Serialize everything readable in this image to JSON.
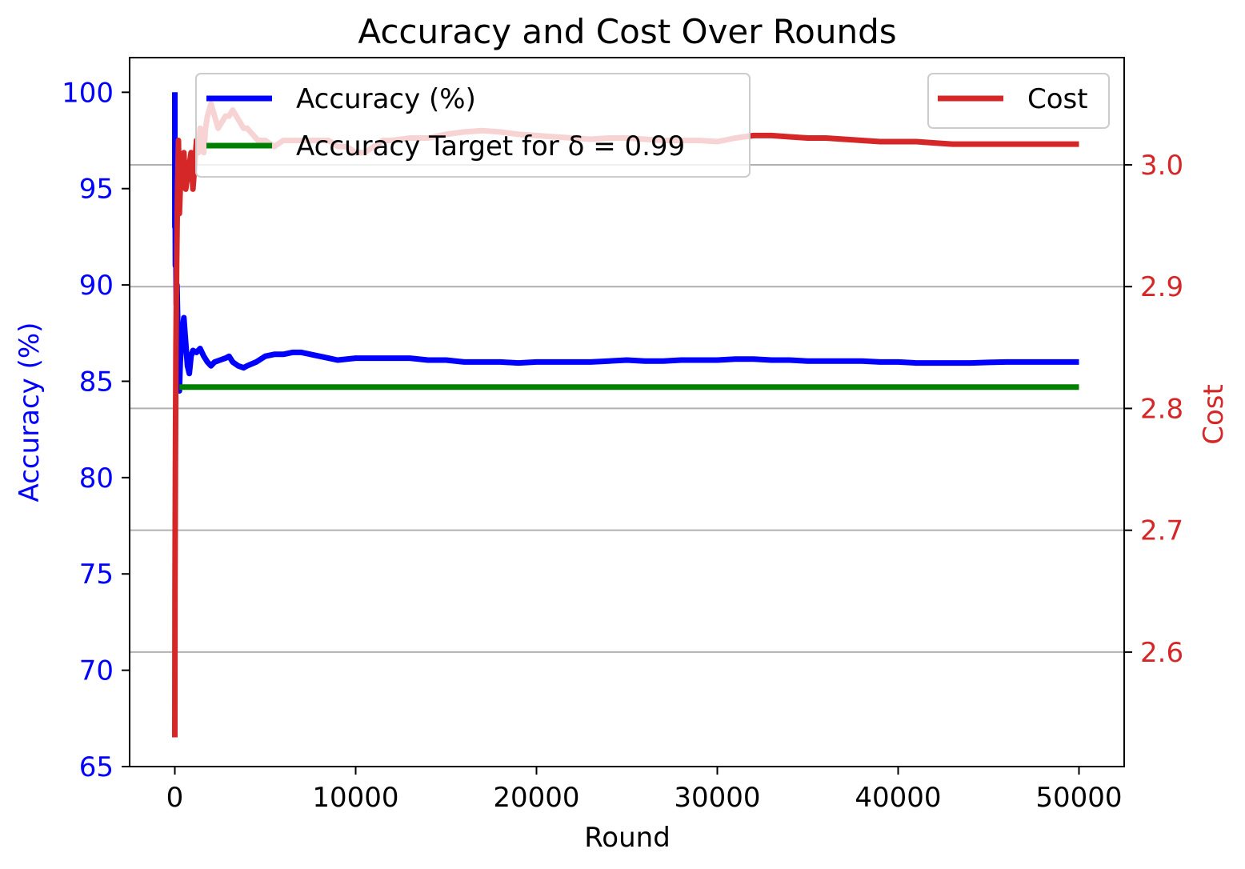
{
  "chart_data": {
    "type": "line",
    "title": "Accuracy and Cost Over Rounds",
    "xlabel": "Round",
    "ylabel_left": "Accuracy (%)",
    "ylabel_right": "Cost",
    "xlim": [
      -2500,
      52500
    ],
    "ylim_left": [
      65,
      101.8
    ],
    "ylim_right": [
      2.506,
      3.088
    ],
    "x_ticks": [
      0,
      10000,
      20000,
      30000,
      40000,
      50000
    ],
    "x_tick_labels": [
      "0",
      "10000",
      "20000",
      "30000",
      "40000",
      "50000"
    ],
    "y_left_ticks": [
      65,
      70,
      75,
      80,
      85,
      90,
      95,
      100
    ],
    "y_left_tick_labels": [
      "65",
      "70",
      "75",
      "80",
      "85",
      "90",
      "95",
      "100"
    ],
    "y_right_ticks": [
      2.6,
      2.7,
      2.8,
      2.9,
      3.0
    ],
    "y_right_tick_labels": [
      "2.6",
      "2.7",
      "2.8",
      "2.9",
      "3.0"
    ],
    "grid": "horizontal lines at right-axis ticks",
    "colors": {
      "accuracy": "#0000ff",
      "target": "#008000",
      "cost": "#d62728",
      "grid": "#b0b0b0",
      "axis": "#000000",
      "left_axis_text": "#0000ff",
      "right_axis_text": "#d62728"
    },
    "legends": [
      {
        "placement": "upper-left",
        "entries": [
          {
            "label": "Accuracy (%)",
            "series": "accuracy"
          },
          {
            "label": "Accuracy Target for δ = 0.99",
            "series": "target"
          }
        ]
      },
      {
        "placement": "upper-right",
        "entries": [
          {
            "label": "Cost",
            "series": "cost"
          }
        ]
      }
    ],
    "series": [
      {
        "name": "Accuracy (%)",
        "axis": "left",
        "points": [
          [
            0,
            100
          ],
          [
            5,
            93
          ],
          [
            15,
            97
          ],
          [
            30,
            91
          ],
          [
            50,
            93
          ],
          [
            80,
            89
          ],
          [
            120,
            90
          ],
          [
            180,
            87
          ],
          [
            250,
            84.5
          ],
          [
            300,
            86
          ],
          [
            400,
            87.5
          ],
          [
            500,
            88.3
          ],
          [
            600,
            87
          ],
          [
            700,
            85.8
          ],
          [
            800,
            85.4
          ],
          [
            900,
            86.3
          ],
          [
            1000,
            86.6
          ],
          [
            1200,
            86.5
          ],
          [
            1400,
            86.7
          ],
          [
            1600,
            86.3
          ],
          [
            1800,
            86.0
          ],
          [
            2000,
            85.8
          ],
          [
            2200,
            86.0
          ],
          [
            2500,
            86.1
          ],
          [
            2800,
            86.2
          ],
          [
            3000,
            86.3
          ],
          [
            3200,
            86.0
          ],
          [
            3500,
            85.8
          ],
          [
            3800,
            85.7
          ],
          [
            4000,
            85.8
          ],
          [
            4500,
            86.0
          ],
          [
            5000,
            86.3
          ],
          [
            5500,
            86.4
          ],
          [
            6000,
            86.4
          ],
          [
            6500,
            86.5
          ],
          [
            7000,
            86.5
          ],
          [
            7500,
            86.4
          ],
          [
            8000,
            86.3
          ],
          [
            8500,
            86.2
          ],
          [
            9000,
            86.1
          ],
          [
            10000,
            86.2
          ],
          [
            11000,
            86.2
          ],
          [
            12000,
            86.2
          ],
          [
            13000,
            86.2
          ],
          [
            14000,
            86.1
          ],
          [
            15000,
            86.1
          ],
          [
            16000,
            86.0
          ],
          [
            17000,
            86.0
          ],
          [
            18000,
            86.0
          ],
          [
            19000,
            85.95
          ],
          [
            20000,
            86.0
          ],
          [
            21000,
            86.0
          ],
          [
            22000,
            86.0
          ],
          [
            23000,
            86.0
          ],
          [
            24000,
            86.05
          ],
          [
            25000,
            86.1
          ],
          [
            26000,
            86.05
          ],
          [
            27000,
            86.05
          ],
          [
            28000,
            86.1
          ],
          [
            29000,
            86.1
          ],
          [
            30000,
            86.1
          ],
          [
            31000,
            86.15
          ],
          [
            32000,
            86.15
          ],
          [
            33000,
            86.1
          ],
          [
            34000,
            86.1
          ],
          [
            35000,
            86.05
          ],
          [
            36000,
            86.05
          ],
          [
            37000,
            86.05
          ],
          [
            38000,
            86.05
          ],
          [
            39000,
            86.0
          ],
          [
            40000,
            86.0
          ],
          [
            41000,
            85.95
          ],
          [
            42000,
            85.95
          ],
          [
            43000,
            85.95
          ],
          [
            44000,
            85.95
          ],
          [
            45000,
            85.98
          ],
          [
            46000,
            86.0
          ],
          [
            47000,
            86.0
          ],
          [
            48000,
            86.0
          ],
          [
            49000,
            86.0
          ],
          [
            50000,
            86.0
          ]
        ]
      },
      {
        "name": "Accuracy Target for δ = 0.99",
        "axis": "left",
        "points": [
          [
            250,
            84.7
          ],
          [
            50000,
            84.7
          ]
        ]
      },
      {
        "name": "Cost",
        "axis": "right",
        "points": [
          [
            0,
            2.53
          ],
          [
            10,
            2.65
          ],
          [
            30,
            2.75
          ],
          [
            60,
            2.85
          ],
          [
            100,
            2.92
          ],
          [
            150,
            2.98
          ],
          [
            200,
            3.02
          ],
          [
            250,
            2.96
          ],
          [
            300,
            2.98
          ],
          [
            400,
            2.99
          ],
          [
            500,
            3.01
          ],
          [
            600,
            2.98
          ],
          [
            700,
            2.99
          ],
          [
            800,
            3.0
          ],
          [
            900,
            3.01
          ],
          [
            1000,
            2.98
          ],
          [
            1100,
            3.0
          ],
          [
            1200,
            3.02
          ],
          [
            1300,
            3.01
          ],
          [
            1400,
            3.03
          ],
          [
            1500,
            3.02
          ],
          [
            1600,
            3.01
          ],
          [
            1700,
            3.03
          ],
          [
            1800,
            3.04
          ],
          [
            2000,
            3.05
          ],
          [
            2200,
            3.04
          ],
          [
            2400,
            3.03
          ],
          [
            2600,
            3.035
          ],
          [
            2800,
            3.04
          ],
          [
            3000,
            3.04
          ],
          [
            3200,
            3.045
          ],
          [
            3400,
            3.04
          ],
          [
            3600,
            3.035
          ],
          [
            3800,
            3.03
          ],
          [
            4000,
            3.03
          ],
          [
            4300,
            3.025
          ],
          [
            4600,
            3.02
          ],
          [
            5000,
            3.02
          ],
          [
            5500,
            3.015
          ],
          [
            6000,
            3.02
          ],
          [
            6500,
            3.02
          ],
          [
            7000,
            3.02
          ],
          [
            7500,
            3.02
          ],
          [
            8000,
            3.02
          ],
          [
            8500,
            3.02
          ],
          [
            9000,
            3.015
          ],
          [
            9500,
            3.015
          ],
          [
            10000,
            3.01
          ],
          [
            10500,
            3.01
          ],
          [
            11000,
            3.015
          ],
          [
            11500,
            3.02
          ],
          [
            12000,
            3.02
          ],
          [
            13000,
            3.022
          ],
          [
            14000,
            3.022
          ],
          [
            15000,
            3.025
          ],
          [
            16000,
            3.027
          ],
          [
            17000,
            3.028
          ],
          [
            18000,
            3.027
          ],
          [
            19000,
            3.025
          ],
          [
            20000,
            3.024
          ],
          [
            21000,
            3.023
          ],
          [
            22000,
            3.022
          ],
          [
            23000,
            3.021
          ],
          [
            24000,
            3.022
          ],
          [
            25000,
            3.022
          ],
          [
            26000,
            3.021
          ],
          [
            27000,
            3.02
          ],
          [
            28000,
            3.02
          ],
          [
            29000,
            3.02
          ],
          [
            30000,
            3.019
          ],
          [
            31000,
            3.022
          ],
          [
            32000,
            3.024
          ],
          [
            33000,
            3.024
          ],
          [
            34000,
            3.023
          ],
          [
            35000,
            3.022
          ],
          [
            36000,
            3.022
          ],
          [
            37000,
            3.021
          ],
          [
            38000,
            3.02
          ],
          [
            39000,
            3.019
          ],
          [
            40000,
            3.019
          ],
          [
            41000,
            3.019
          ],
          [
            42000,
            3.018
          ],
          [
            43000,
            3.017
          ],
          [
            44000,
            3.017
          ],
          [
            45000,
            3.017
          ],
          [
            46000,
            3.017
          ],
          [
            47000,
            3.017
          ],
          [
            48000,
            3.017
          ],
          [
            49000,
            3.017
          ],
          [
            50000,
            3.017
          ]
        ]
      }
    ]
  }
}
